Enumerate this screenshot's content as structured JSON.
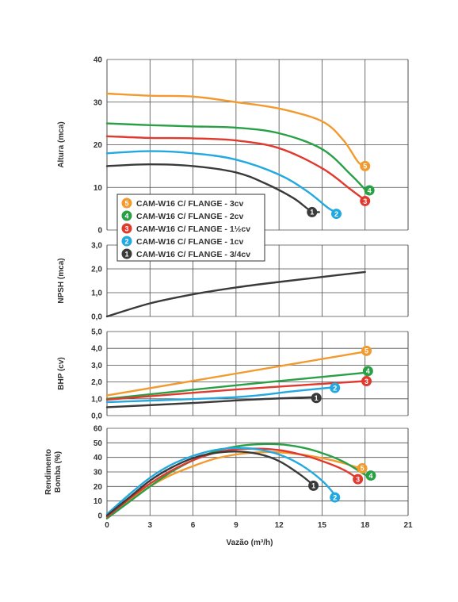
{
  "x_axis": {
    "label": "Vazão (m³/h)",
    "ticks": [
      0,
      3,
      6,
      9,
      12,
      15,
      18,
      21
    ],
    "range": [
      0,
      21
    ]
  },
  "legend": {
    "items": [
      {
        "badge": "5",
        "label": "CAM-W16 C/ FLANGE - 3cv",
        "color": "#F39A2E"
      },
      {
        "badge": "4",
        "label": "CAM-W16 C/ FLANGE - 2cv",
        "color": "#2AA046"
      },
      {
        "badge": "3",
        "label": "CAM-W16 C/ FLANGE - 1½cv",
        "color": "#E03A2F"
      },
      {
        "badge": "2",
        "label": "CAM-W16 C/ FLANGE - 1cv",
        "color": "#23A9DF"
      },
      {
        "badge": "1",
        "label": "CAM-W16 C/ FLANGE - 3/4cv",
        "color": "#3A3A3A"
      }
    ]
  },
  "chart_data": [
    {
      "type": "line",
      "ylabel": "Altura (mca)",
      "ylim": [
        0,
        40
      ],
      "yticks": [
        "0",
        "10",
        "20",
        "30",
        "40"
      ],
      "grid": true,
      "series": [
        {
          "badge": "5",
          "color": "#F39A2E",
          "points": [
            [
              0,
              32
            ],
            [
              3,
              31.5
            ],
            [
              6,
              31.3
            ],
            [
              9,
              30
            ],
            [
              12,
              28.5
            ],
            [
              15,
              25.5
            ],
            [
              16.5,
              21
            ],
            [
              17.5,
              16
            ],
            [
              18,
              15
            ]
          ]
        },
        {
          "badge": "4",
          "color": "#2AA046",
          "points": [
            [
              0,
              25
            ],
            [
              3,
              24.6
            ],
            [
              6,
              24.3
            ],
            [
              9,
              24
            ],
            [
              12,
              22.7
            ],
            [
              15,
              19
            ],
            [
              17,
              13
            ],
            [
              18,
              9.5
            ]
          ]
        },
        {
          "badge": "3",
          "color": "#E03A2F",
          "points": [
            [
              0,
              22
            ],
            [
              3,
              21.6
            ],
            [
              6,
              21.5
            ],
            [
              9,
              21
            ],
            [
              12,
              19.2
            ],
            [
              15,
              14.5
            ],
            [
              17,
              9.5
            ],
            [
              18,
              7
            ]
          ]
        },
        {
          "badge": "2",
          "color": "#23A9DF",
          "points": [
            [
              0,
              18
            ],
            [
              3,
              18.5
            ],
            [
              6,
              18
            ],
            [
              9,
              16.5
            ],
            [
              12,
              13
            ],
            [
              14,
              9
            ],
            [
              15.5,
              5
            ],
            [
              16.3,
              3.8
            ]
          ]
        },
        {
          "badge": "1",
          "color": "#3A3A3A",
          "points": [
            [
              0,
              15
            ],
            [
              3,
              15.4
            ],
            [
              6,
              15
            ],
            [
              9,
              13.5
            ],
            [
              11,
              11
            ],
            [
              13,
              7.5
            ],
            [
              14.2,
              4.5
            ],
            [
              14.8,
              4.2
            ]
          ]
        }
      ]
    },
    {
      "type": "line",
      "ylabel": "NPSH (mca)",
      "ylim": [
        0,
        3
      ],
      "yticks": [
        "0,0",
        "1,0",
        "2,0",
        "3,0"
      ],
      "grid": true,
      "series": [
        {
          "color": "#3A3A3A",
          "points": [
            [
              0,
              0
            ],
            [
              3,
              0.55
            ],
            [
              6,
              0.93
            ],
            [
              9,
              1.22
            ],
            [
              12,
              1.45
            ],
            [
              15,
              1.66
            ],
            [
              18,
              1.87
            ]
          ]
        }
      ]
    },
    {
      "type": "line",
      "ylabel": "BHP (cv)",
      "ylim": [
        0,
        5
      ],
      "yticks": [
        "0,0",
        "1,0",
        "2,0",
        "3,0",
        "4,0",
        "5,0"
      ],
      "grid": true,
      "series": [
        {
          "badge": "5",
          "color": "#F39A2E",
          "points": [
            [
              0,
              1.2
            ],
            [
              18,
              3.8
            ]
          ]
        },
        {
          "badge": "4",
          "color": "#2AA046",
          "points": [
            [
              0,
              1.0
            ],
            [
              9,
              1.8
            ],
            [
              18,
              2.55
            ]
          ]
        },
        {
          "badge": "3",
          "color": "#E03A2F",
          "points": [
            [
              0,
              0.95
            ],
            [
              9,
              1.55
            ],
            [
              18,
              2.05
            ]
          ]
        },
        {
          "badge": "2",
          "color": "#23A9DF",
          "points": [
            [
              0,
              0.8
            ],
            [
              9,
              1.1
            ],
            [
              13,
              1.45
            ],
            [
              16,
              1.7
            ]
          ]
        },
        {
          "badge": "1",
          "color": "#3A3A3A",
          "points": [
            [
              0,
              0.5
            ],
            [
              6,
              0.75
            ],
            [
              10,
              0.95
            ],
            [
              14.5,
              1.1
            ]
          ]
        }
      ]
    },
    {
      "type": "line",
      "ylabel": "Rendimento Bomba (%)",
      "ylim": [
        0,
        60
      ],
      "yticks": [
        "0",
        "10",
        "20",
        "30",
        "40",
        "50",
        "60"
      ],
      "grid": true,
      "series": [
        {
          "badge": "5",
          "color": "#F39A2E",
          "points": [
            [
              0,
              -1
            ],
            [
              1.5,
              10
            ],
            [
              3,
              20
            ],
            [
              4.5,
              28
            ],
            [
              6,
              34
            ],
            [
              7.5,
              39
            ],
            [
              9,
              42
            ],
            [
              10.5,
              43.5
            ],
            [
              12,
              43.5
            ],
            [
              13.5,
              42
            ],
            [
              15,
              39.5
            ],
            [
              16.5,
              36
            ],
            [
              17.8,
              32
            ]
          ]
        },
        {
          "badge": "4",
          "color": "#2AA046",
          "points": [
            [
              0,
              -2
            ],
            [
              1.5,
              9
            ],
            [
              3,
              20
            ],
            [
              4.5,
              30
            ],
            [
              6,
              38
            ],
            [
              7.5,
              44
            ],
            [
              9,
              47.5
            ],
            [
              10.5,
              49
            ],
            [
              12,
              49
            ],
            [
              13.5,
              47
            ],
            [
              15,
              43
            ],
            [
              16.5,
              37
            ],
            [
              18,
              28
            ]
          ]
        },
        {
          "badge": "3",
          "color": "#E03A2F",
          "points": [
            [
              0,
              -1
            ],
            [
              1.5,
              11
            ],
            [
              3,
              22
            ],
            [
              4.5,
              31
            ],
            [
              6,
              38
            ],
            [
              7.5,
              43
            ],
            [
              9,
              45.5
            ],
            [
              10.5,
              46
            ],
            [
              12,
              45
            ],
            [
              13.5,
              42
            ],
            [
              15,
              37.5
            ],
            [
              16.5,
              31.5
            ],
            [
              17.4,
              26
            ]
          ]
        },
        {
          "badge": "2",
          "color": "#23A9DF",
          "points": [
            [
              0,
              1
            ],
            [
              1.5,
              14
            ],
            [
              3,
              26
            ],
            [
              4.5,
              35
            ],
            [
              6,
              41
            ],
            [
              7.5,
              45
            ],
            [
              9,
              46.5
            ],
            [
              10.5,
              45.5
            ],
            [
              12,
              42
            ],
            [
              13.5,
              35
            ],
            [
              15,
              24
            ],
            [
              16,
              13
            ]
          ]
        },
        {
          "badge": "1",
          "color": "#3A3A3A",
          "points": [
            [
              0,
              0
            ],
            [
              1.5,
              12
            ],
            [
              3,
              24
            ],
            [
              4.5,
              33
            ],
            [
              6,
              39.5
            ],
            [
              7.5,
              43
            ],
            [
              9,
              44
            ],
            [
              10.5,
              42.5
            ],
            [
              12,
              37.5
            ],
            [
              13.5,
              28
            ],
            [
              14.5,
              20
            ]
          ]
        }
      ]
    }
  ]
}
